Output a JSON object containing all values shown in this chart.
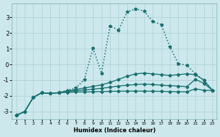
{
  "xlabel": "Humidex (Indice chaleur)",
  "bg_color": "#cce8ec",
  "grid_color": "#aacdd4",
  "line_color": "#1a7070",
  "xlim": [
    -0.5,
    23.5
  ],
  "ylim": [
    -3.5,
    3.9
  ],
  "yticks": [
    -3,
    -2,
    -1,
    0,
    1,
    2,
    3
  ],
  "xticks": [
    0,
    1,
    2,
    3,
    4,
    5,
    6,
    7,
    8,
    9,
    10,
    11,
    12,
    13,
    14,
    15,
    16,
    17,
    18,
    19,
    20,
    21,
    22,
    23
  ],
  "series": [
    {
      "x": [
        0,
        1,
        2,
        3,
        4,
        5,
        6,
        7,
        8,
        9,
        10,
        11,
        12,
        13,
        14,
        15,
        16,
        17,
        18,
        19,
        20,
        21,
        22,
        23
      ],
      "y": [
        -3.25,
        -3.0,
        -2.1,
        -1.8,
        -1.85,
        -1.8,
        -1.65,
        -1.5,
        -0.95,
        1.05,
        -0.55,
        2.45,
        2.2,
        3.35,
        3.55,
        3.4,
        2.75,
        2.55,
        1.15,
        0.05,
        -0.05,
        -0.6,
        -1.0,
        -1.65
      ],
      "linestyle": "dotted",
      "marker": "*",
      "linewidth": 1.2,
      "markersize": 3.5
    },
    {
      "x": [
        0,
        1,
        2,
        3,
        4,
        5,
        6,
        7,
        8,
        9,
        10,
        11,
        12,
        13,
        14,
        15,
        16,
        17,
        18,
        19,
        20,
        21,
        22,
        23
      ],
      "y": [
        -3.25,
        -3.0,
        -2.1,
        -1.8,
        -1.85,
        -1.8,
        -1.68,
        -1.6,
        -1.5,
        -1.4,
        -1.3,
        -1.15,
        -0.95,
        -0.75,
        -0.6,
        -0.55,
        -0.6,
        -0.65,
        -0.7,
        -0.65,
        -0.6,
        -0.65,
        -1.0,
        -1.65
      ],
      "linestyle": "solid",
      "marker": "D",
      "linewidth": 1.0,
      "markersize": 2.2
    },
    {
      "x": [
        0,
        1,
        2,
        3,
        4,
        5,
        6,
        7,
        8,
        9,
        10,
        11,
        12,
        13,
        14,
        15,
        16,
        17,
        18,
        19,
        20,
        21,
        22,
        23
      ],
      "y": [
        -3.25,
        -3.0,
        -2.1,
        -1.8,
        -1.85,
        -1.8,
        -1.72,
        -1.68,
        -1.62,
        -1.58,
        -1.52,
        -1.45,
        -1.38,
        -1.32,
        -1.28,
        -1.25,
        -1.28,
        -1.32,
        -1.35,
        -1.38,
        -1.42,
        -0.95,
        -1.2,
        -1.65
      ],
      "linestyle": "solid",
      "marker": "D",
      "linewidth": 1.0,
      "markersize": 2.2
    },
    {
      "x": [
        0,
        1,
        2,
        3,
        4,
        5,
        6,
        7,
        8,
        9,
        10,
        11,
        12,
        13,
        14,
        15,
        16,
        17,
        18,
        19,
        20,
        21,
        22,
        23
      ],
      "y": [
        -3.25,
        -3.0,
        -2.1,
        -1.8,
        -1.85,
        -1.8,
        -1.78,
        -1.76,
        -1.75,
        -1.74,
        -1.73,
        -1.72,
        -1.71,
        -1.7,
        -1.7,
        -1.7,
        -1.71,
        -1.72,
        -1.73,
        -1.74,
        -1.75,
        -1.55,
        -1.65,
        -1.65
      ],
      "linestyle": "solid",
      "marker": "D",
      "linewidth": 1.0,
      "markersize": 2.2
    }
  ]
}
